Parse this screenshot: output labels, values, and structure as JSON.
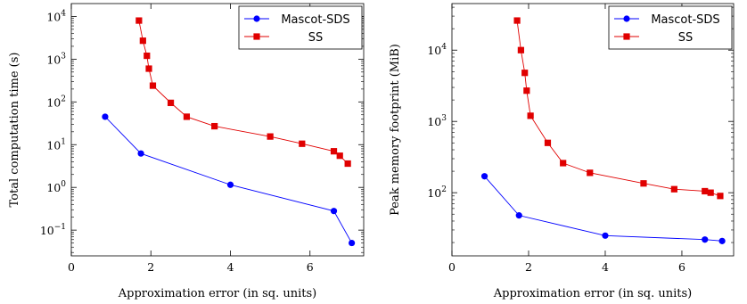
{
  "chart_data": [
    {
      "type": "line",
      "xlabel": "Approximation error (in sq. units)",
      "ylabel": "Total computation time (s)",
      "xlim": [
        0,
        7.35
      ],
      "ylim": [
        0.025,
        20000
      ],
      "yscale": "log",
      "xticks": [
        0,
        2,
        4,
        6
      ],
      "yticks": [
        {
          "value": 0.1,
          "base": "10",
          "exp": "−1"
        },
        {
          "value": 1,
          "base": "10",
          "exp": "0"
        },
        {
          "value": 10,
          "base": "10",
          "exp": "1"
        },
        {
          "value": 100,
          "base": "10",
          "exp": "2"
        },
        {
          "value": 1000,
          "base": "10",
          "exp": "3"
        },
        {
          "value": 10000,
          "base": "10",
          "exp": "4"
        }
      ],
      "legend_position": "top-right",
      "series": [
        {
          "name": "Mascot-SDS",
          "color": "#0000ff",
          "marker": "circle",
          "x": [
            0.85,
            1.75,
            4.0,
            6.6,
            7.05
          ],
          "y": [
            45,
            6.2,
            1.15,
            0.28,
            0.05
          ]
        },
        {
          "name": "SS",
          "color": "#e00000",
          "marker": "square",
          "x": [
            1.7,
            1.8,
            1.9,
            1.95,
            2.05,
            2.5,
            2.9,
            3.6,
            5.0,
            5.8,
            6.6,
            6.75,
            6.95
          ],
          "y": [
            8000,
            2700,
            1200,
            600,
            240,
            95,
            45,
            27,
            15.5,
            10.5,
            7,
            5.5,
            3.6
          ]
        }
      ]
    },
    {
      "type": "line",
      "xlabel": "Approximation error (in sq. units)",
      "ylabel": "Peak memory footprint (MiB)",
      "xlim": [
        0,
        7.35
      ],
      "ylim": [
        13,
        45000
      ],
      "yscale": "log",
      "xticks": [
        0,
        2,
        4,
        6
      ],
      "yticks": [
        {
          "value": 100,
          "base": "10",
          "exp": "2"
        },
        {
          "value": 1000,
          "base": "10",
          "exp": "3"
        },
        {
          "value": 10000,
          "base": "10",
          "exp": "4"
        }
      ],
      "legend_position": "top-right",
      "series": [
        {
          "name": "Mascot-SDS",
          "color": "#0000ff",
          "marker": "circle",
          "x": [
            0.85,
            1.75,
            4.0,
            6.6,
            7.05
          ],
          "y": [
            170,
            48,
            25,
            22,
            21
          ]
        },
        {
          "name": "SS",
          "color": "#e00000",
          "marker": "square",
          "x": [
            1.7,
            1.8,
            1.9,
            1.95,
            2.05,
            2.5,
            2.9,
            3.6,
            5.0,
            5.8,
            6.6,
            6.75,
            7.0
          ],
          "y": [
            26000,
            10000,
            4800,
            2700,
            1200,
            500,
            260,
            190,
            135,
            112,
            105,
            100,
            90
          ]
        }
      ]
    }
  ]
}
